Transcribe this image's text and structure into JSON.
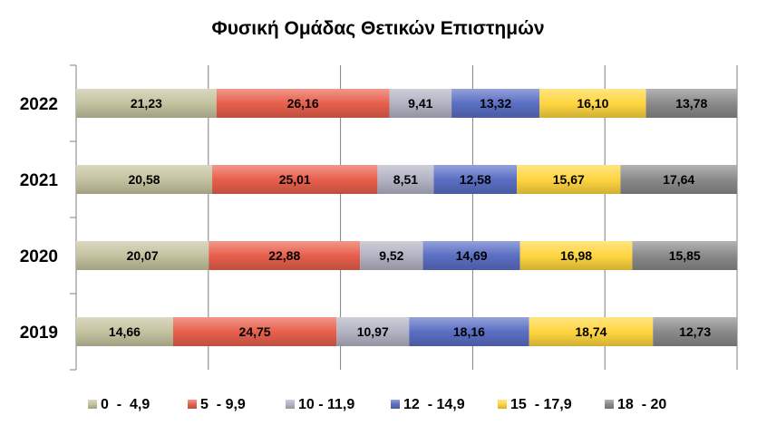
{
  "chart_data": {
    "type": "bar",
    "orientation": "horizontal",
    "stacked": true,
    "percent_stacked": true,
    "title": "Φυσική Ομάδας Θετικών Επιστημών",
    "categories": [
      "2022",
      "2021",
      "2020",
      "2019"
    ],
    "series": [
      {
        "name": "0  -  4,9",
        "color": "#c4c3a0",
        "values": [
          21.23,
          20.58,
          20.07,
          14.66
        ],
        "labels": [
          "21,23",
          "20,58",
          "20,07",
          "14,66"
        ]
      },
      {
        "name": "5  - 9,9",
        "color": "#e8604c",
        "values": [
          26.16,
          25.01,
          22.88,
          24.75
        ],
        "labels": [
          "26,16",
          "25,01",
          "22,88",
          "24,75"
        ]
      },
      {
        "name": "10 - 11,9",
        "color": "#b3b3c4",
        "values": [
          9.41,
          8.51,
          9.52,
          10.97
        ],
        "labels": [
          "9,41",
          "8,51",
          "9,52",
          "10,97"
        ]
      },
      {
        "name": "12  - 14,9",
        "color": "#5b6fc4",
        "values": [
          13.32,
          12.58,
          14.69,
          18.16
        ],
        "labels": [
          "13,32",
          "12,58",
          "14,69",
          "18,16"
        ]
      },
      {
        "name": "15  - 17,9",
        "color": "#ffd640",
        "values": [
          16.1,
          15.67,
          16.98,
          18.74
        ],
        "labels": [
          "16,10",
          "15,67",
          "16,98",
          "18,74"
        ]
      },
      {
        "name": "18  - 20",
        "color": "#8a8a8a",
        "values": [
          13.78,
          17.64,
          15.85,
          12.73
        ],
        "labels": [
          "13,78",
          "17,64",
          "15,85",
          "12,73"
        ]
      }
    ],
    "xlim": [
      0,
      100
    ],
    "grid": true,
    "legend_position": "bottom"
  }
}
